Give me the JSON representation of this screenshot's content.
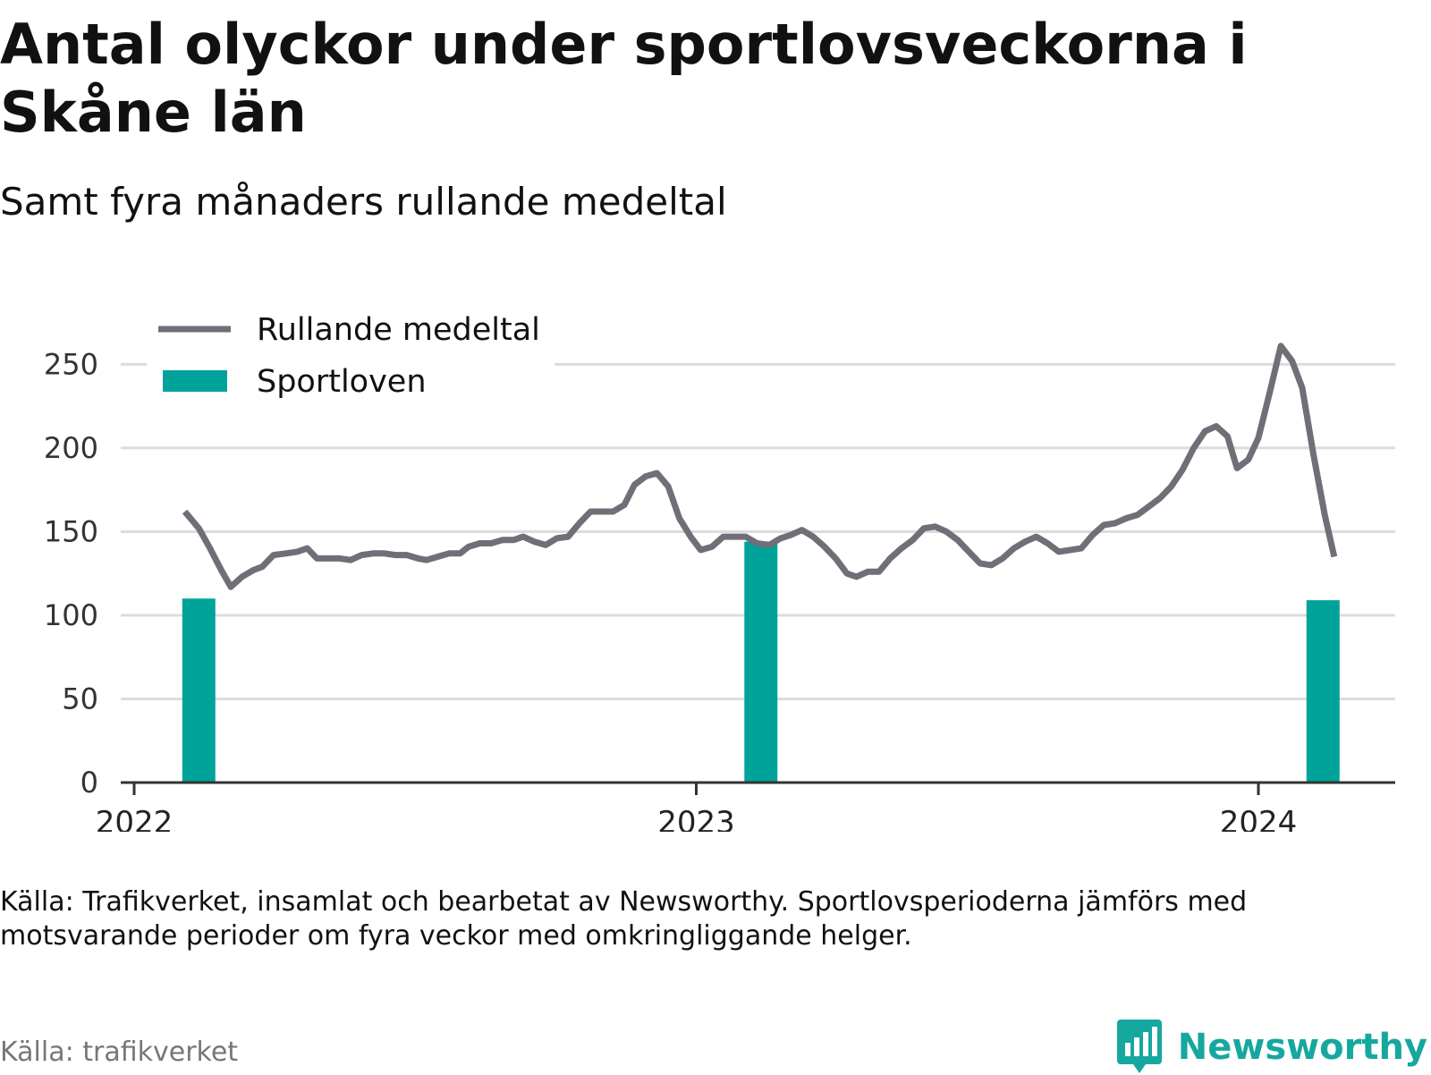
{
  "title": "Antal olyckor under sportlovsveckorna i Skåne län",
  "subtitle": "Samt fyra månaders rullande medeltal",
  "source_note": "Källa: Trafikverket, insamlat och bearbetat av Newsworthy. Sportlovsperioderna jämförs med motsvarande perioder om fyra veckor med omkringliggande helger.",
  "credit": "Källa: trafikverket",
  "brand": {
    "name": "Newsworthy",
    "icon": "newsworthy-logo-icon"
  },
  "colors": {
    "line": "#6f6f77",
    "bar": "#00a39a",
    "grid": "#dcdcdc",
    "axis": "#333333",
    "brand": "#16a89f"
  },
  "chart_data": {
    "type": "bar+line",
    "ylim": [
      0,
      270
    ],
    "yticks": [
      0,
      50,
      100,
      150,
      200,
      250
    ],
    "xlim": [
      2022.0,
      2024.25
    ],
    "xticks": [
      {
        "value": 2022,
        "label": "2022"
      },
      {
        "value": 2023,
        "label": "2023"
      },
      {
        "value": 2024,
        "label": "2024"
      }
    ],
    "grid": true,
    "legend": {
      "placement": "top-left",
      "items": [
        {
          "label": "Rullande medeltal",
          "kind": "line"
        },
        {
          "label": "Sportloven",
          "kind": "bar"
        }
      ]
    },
    "series": [
      {
        "name": "Sportloven",
        "type": "bar",
        "points": [
          {
            "x": 2022.115,
            "y": 110
          },
          {
            "x": 2023.115,
            "y": 144
          },
          {
            "x": 2024.115,
            "y": 109
          }
        ]
      },
      {
        "name": "Rullande medeltal",
        "type": "line",
        "points": [
          [
            2022.09,
            162
          ],
          [
            2022.115,
            152
          ],
          [
            2022.135,
            140
          ],
          [
            2022.155,
            127
          ],
          [
            2022.172,
            117
          ],
          [
            2022.192,
            123
          ],
          [
            2022.212,
            127
          ],
          [
            2022.228,
            129
          ],
          [
            2022.248,
            136
          ],
          [
            2022.27,
            137
          ],
          [
            2022.29,
            138
          ],
          [
            2022.308,
            140
          ],
          [
            2022.325,
            134
          ],
          [
            2022.345,
            134
          ],
          [
            2022.365,
            134
          ],
          [
            2022.385,
            133
          ],
          [
            2022.405,
            136
          ],
          [
            2022.425,
            137
          ],
          [
            2022.445,
            137
          ],
          [
            2022.465,
            136
          ],
          [
            2022.485,
            136
          ],
          [
            2022.505,
            134
          ],
          [
            2022.52,
            133
          ],
          [
            2022.54,
            135
          ],
          [
            2022.56,
            137
          ],
          [
            2022.58,
            137
          ],
          [
            2022.595,
            141
          ],
          [
            2022.615,
            143
          ],
          [
            2022.635,
            143
          ],
          [
            2022.655,
            145
          ],
          [
            2022.675,
            145
          ],
          [
            2022.692,
            147
          ],
          [
            2022.712,
            144
          ],
          [
            2022.732,
            142
          ],
          [
            2022.752,
            146
          ],
          [
            2022.772,
            147
          ],
          [
            2022.792,
            155
          ],
          [
            2022.812,
            162
          ],
          [
            2022.832,
            162
          ],
          [
            2022.852,
            162
          ],
          [
            2022.872,
            166
          ],
          [
            2022.89,
            178
          ],
          [
            2022.91,
            183
          ],
          [
            2022.93,
            185
          ],
          [
            2022.95,
            177
          ],
          [
            2022.97,
            158
          ],
          [
            2022.99,
            147
          ],
          [
            2023.008,
            139
          ],
          [
            2023.028,
            141
          ],
          [
            2023.048,
            147
          ],
          [
            2023.068,
            147
          ],
          [
            2023.088,
            147
          ],
          [
            2023.108,
            143
          ],
          [
            2023.13,
            142
          ],
          [
            2023.15,
            146
          ],
          [
            2023.168,
            148
          ],
          [
            2023.188,
            151
          ],
          [
            2023.208,
            147
          ],
          [
            2023.228,
            141
          ],
          [
            2023.248,
            134
          ],
          [
            2023.268,
            125
          ],
          [
            2023.285,
            123
          ],
          [
            2023.305,
            126
          ],
          [
            2023.325,
            126
          ],
          [
            2023.345,
            134
          ],
          [
            2023.365,
            140
          ],
          [
            2023.385,
            145
          ],
          [
            2023.405,
            152
          ],
          [
            2023.425,
            153
          ],
          [
            2023.445,
            150
          ],
          [
            2023.465,
            145
          ],
          [
            2023.485,
            138
          ],
          [
            2023.505,
            131
          ],
          [
            2023.525,
            130
          ],
          [
            2023.545,
            134
          ],
          [
            2023.565,
            140
          ],
          [
            2023.585,
            144
          ],
          [
            2023.605,
            147
          ],
          [
            2023.625,
            143
          ],
          [
            2023.645,
            138
          ],
          [
            2023.665,
            139
          ],
          [
            2023.685,
            140
          ],
          [
            2023.705,
            148
          ],
          [
            2023.725,
            154
          ],
          [
            2023.745,
            155
          ],
          [
            2023.765,
            158
          ],
          [
            2023.785,
            160
          ],
          [
            2023.805,
            165
          ],
          [
            2023.825,
            170
          ],
          [
            2023.845,
            177
          ],
          [
            2023.865,
            187
          ],
          [
            2023.885,
            200
          ],
          [
            2023.905,
            210
          ],
          [
            2023.925,
            213
          ],
          [
            2023.945,
            207
          ],
          [
            2023.962,
            188
          ],
          [
            2023.982,
            193
          ],
          [
            2024.0,
            206
          ],
          [
            2024.02,
            233
          ],
          [
            2024.04,
            261
          ],
          [
            2024.06,
            252
          ],
          [
            2024.078,
            236
          ],
          [
            2024.098,
            196
          ],
          [
            2024.118,
            160
          ],
          [
            2024.135,
            135
          ]
        ]
      }
    ]
  }
}
